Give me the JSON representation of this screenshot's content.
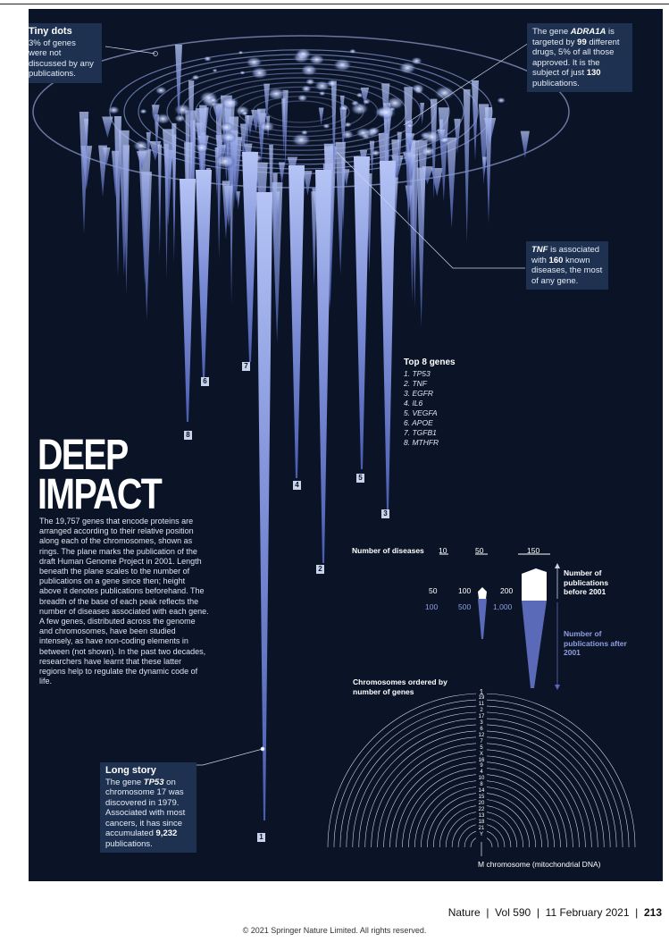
{
  "headline": [
    "DEEP",
    "IMPACT"
  ],
  "body": "The 19,757 genes that encode proteins are arranged according to their relative position along each of the chromosomes, shown as rings. The plane marks the publication of the draft Human Genome Project in 2001. Length beneath the plane scales to the number of publications on a gene since then; height above it denotes publications beforehand. The breadth of the base of each peak reflects the number of diseases associated with each gene. A few genes, distributed across the genome and chromosomes, have been studied intensely, as have non-coding elements in between (not shown). In the past two decades, researchers have learnt that these latter regions help to regulate the dynamic code of life.",
  "callouts": {
    "tiny_dots": {
      "title": "Tiny dots",
      "text": "3% of genes were not discussed by any publications."
    },
    "adra1a": {
      "pre": "The gene ",
      "gene": "ADRA1A",
      "mid1": " is targeted by ",
      "n1": "99",
      "mid2": " different drugs, 5% of all those approved. It is the subject of just ",
      "n2": "130",
      "post": " publications."
    },
    "tnf": {
      "gene": "TNF",
      "mid": " is associated with ",
      "n": "160",
      "post": " known diseases, the most of any gene."
    },
    "long_story": {
      "title": "Long story",
      "pre": "The gene ",
      "gene": "TP53",
      "mid": " on chromosome 17 was discovered in 1979. Associated with most cancers, it has since accumulated ",
      "n": "9,232",
      "post": " publications."
    }
  },
  "top8": {
    "title": "Top 8 genes",
    "items": [
      "1. TP53",
      "2. TNF",
      "3. EGFR",
      "4. IL6",
      "5. VEGFA",
      "6. APOE",
      "7. TGFB1",
      "8. MTHFR"
    ]
  },
  "spike_numbers": [
    "1",
    "2",
    "3",
    "4",
    "5",
    "6",
    "7",
    "8"
  ],
  "key": {
    "diseases_label": "Number of diseases",
    "disease_values": [
      "10",
      "50",
      "150"
    ],
    "before_values": [
      "50",
      "100",
      "200"
    ],
    "after_values": [
      "100",
      "500",
      "1,000"
    ],
    "before_label": "Number of publications before 2001",
    "after_label": "Number of publications after 2001"
  },
  "chromosomes": {
    "title": "Chromosomes ordered by number of genes",
    "order": [
      "1",
      "19",
      "11",
      "2",
      "17",
      "3",
      "6",
      "12",
      "7",
      "5",
      "X",
      "16",
      "9",
      "4",
      "10",
      "8",
      "14",
      "15",
      "20",
      "22",
      "13",
      "18",
      "21",
      "Y"
    ],
    "m_label": "M chromosome (mitochondrial DNA)"
  },
  "footer": {
    "journal": "Nature",
    "vol": "Vol 590",
    "date": "11 February 2021",
    "page": "213"
  },
  "copyright": "© 2021 Springer Nature Limited. All rights reserved.",
  "colors": {
    "panel": "#0b1426",
    "spike": "#8f9fe0",
    "spike_light": "#dde6ff",
    "box": "#1e3150",
    "after": "#5a6ab8"
  }
}
